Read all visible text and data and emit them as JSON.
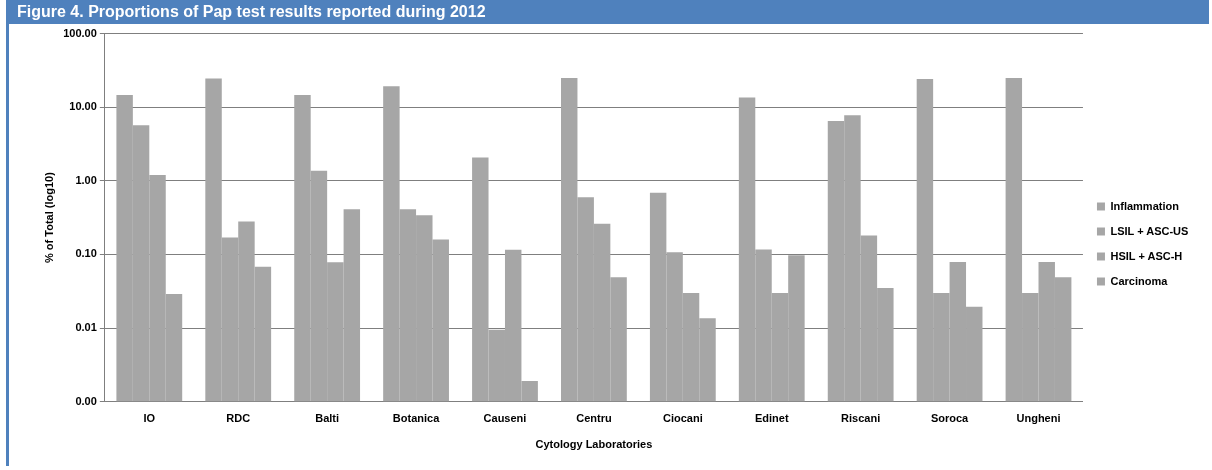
{
  "chart_data": {
    "type": "bar",
    "title": "Figure 4. Proportions of Pap test results reported during 2012",
    "xlabel": "Cytology Laboratories",
    "ylabel": "% of Total (log10)",
    "categories": [
      "IO",
      "RDC",
      "Balti",
      "Botanica",
      "Causeni",
      "Centru",
      "Ciocani",
      "Edinet",
      "Riscani",
      "Soroca",
      "Ungheni"
    ],
    "series": [
      {
        "name": "Inflammation",
        "color": "#a6a6a6",
        "values": [
          14.6,
          24.5,
          14.6,
          19.2,
          2.07,
          25,
          0.69,
          13.5,
          6.5,
          24.2,
          25
        ]
      },
      {
        "name": "LSIL + ASC-US",
        "color": "#a6a6a6",
        "values": [
          5.7,
          0.17,
          1.37,
          0.41,
          0.0095,
          0.6,
          0.107,
          0.117,
          7.8,
          0.03,
          0.03
        ]
      },
      {
        "name": "HSIL + ASC-H",
        "color": "#a6a6a6",
        "values": [
          1.2,
          0.28,
          0.078,
          0.34,
          0.116,
          0.26,
          0.03,
          0.03,
          0.18,
          0.079,
          0.079
        ]
      },
      {
        "name": "Carcinoma",
        "color": "#a6a6a6",
        "values": [
          0.029,
          0.068,
          0.41,
          0.16,
          0.0019,
          0.049,
          0.0136,
          0.097,
          0.035,
          0.0195,
          0.049
        ]
      }
    ],
    "log": true,
    "ylim": [
      0.001,
      100
    ],
    "yticks": [
      {
        "value": 0.001,
        "label": "0.00"
      },
      {
        "value": 0.01,
        "label": "0.01"
      },
      {
        "value": 0.1,
        "label": "0.10"
      },
      {
        "value": 1,
        "label": "1.00"
      },
      {
        "value": 10,
        "label": "10.00"
      },
      {
        "value": 100,
        "label": "100.00"
      }
    ],
    "grid": "y",
    "legend": "right"
  }
}
